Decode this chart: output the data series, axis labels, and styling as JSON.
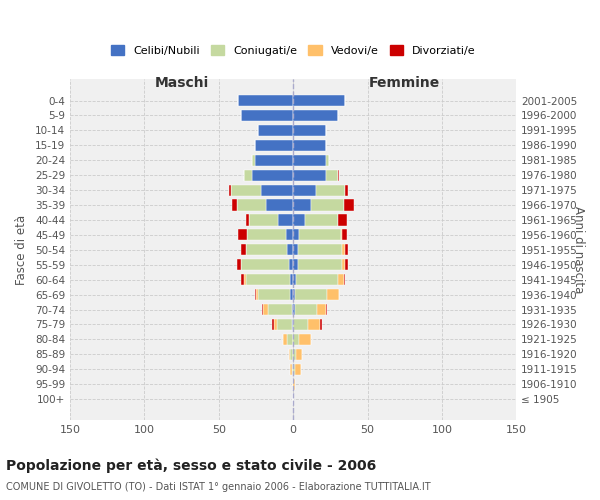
{
  "age_groups": [
    "100+",
    "95-99",
    "90-94",
    "85-89",
    "80-84",
    "75-79",
    "70-74",
    "65-69",
    "60-64",
    "55-59",
    "50-54",
    "45-49",
    "40-44",
    "35-39",
    "30-34",
    "25-29",
    "20-24",
    "15-19",
    "10-14",
    "5-9",
    "0-4"
  ],
  "birth_years": [
    "≤ 1905",
    "1906-1910",
    "1911-1915",
    "1916-1920",
    "1921-1925",
    "1926-1930",
    "1931-1935",
    "1936-1940",
    "1941-1945",
    "1946-1950",
    "1951-1955",
    "1956-1960",
    "1961-1965",
    "1966-1970",
    "1971-1975",
    "1976-1980",
    "1981-1985",
    "1986-1990",
    "1991-1995",
    "1996-2000",
    "2001-2005"
  ],
  "male": {
    "celibi": [
      0,
      0,
      0,
      0,
      0,
      1,
      1,
      2,
      2,
      3,
      4,
      5,
      10,
      18,
      22,
      28,
      26,
      26,
      24,
      35,
      37
    ],
    "coniugati": [
      0,
      0,
      1,
      2,
      4,
      10,
      16,
      22,
      30,
      32,
      28,
      26,
      20,
      20,
      20,
      5,
      2,
      0,
      0,
      0,
      0
    ],
    "vedovi": [
      0,
      0,
      1,
      1,
      3,
      2,
      3,
      1,
      1,
      0,
      0,
      0,
      0,
      0,
      0,
      0,
      0,
      0,
      0,
      0,
      0
    ],
    "divorziati": [
      0,
      0,
      0,
      0,
      0,
      1,
      1,
      1,
      2,
      3,
      3,
      6,
      2,
      3,
      1,
      0,
      0,
      0,
      0,
      0,
      0
    ]
  },
  "female": {
    "nubili": [
      0,
      0,
      0,
      0,
      0,
      0,
      1,
      1,
      2,
      3,
      3,
      4,
      8,
      12,
      15,
      22,
      22,
      22,
      22,
      30,
      35
    ],
    "coniugate": [
      0,
      0,
      1,
      2,
      4,
      10,
      15,
      22,
      28,
      30,
      30,
      28,
      22,
      22,
      20,
      8,
      2,
      0,
      0,
      0,
      0
    ],
    "vedove": [
      0,
      1,
      4,
      4,
      8,
      8,
      6,
      8,
      4,
      2,
      2,
      1,
      0,
      0,
      0,
      0,
      0,
      0,
      0,
      0,
      0
    ],
    "divorziate": [
      0,
      0,
      0,
      0,
      0,
      1,
      1,
      0,
      1,
      2,
      2,
      3,
      6,
      7,
      2,
      1,
      0,
      0,
      0,
      0,
      0
    ]
  },
  "colors": {
    "celibi": "#4472C4",
    "coniugati": "#c5d9a0",
    "vedovi": "#ffc06a",
    "divorziati": "#cc0000"
  },
  "title": "Popolazione per età, sesso e stato civile - 2006",
  "subtitle": "COMUNE DI GIVOLETTO (TO) - Dati ISTAT 1° gennaio 2006 - Elaborazione TUTTITALIA.IT",
  "xlabel_left": "Maschi",
  "xlabel_right": "Femmine",
  "ylabel_left": "Fasce di età",
  "ylabel_right": "Anni di nascita",
  "xlim": 150,
  "bg_color": "#ffffff",
  "grid_color": "#cccccc",
  "legend_labels": [
    "Celibi/Nubili",
    "Coniugati/e",
    "Vedovi/e",
    "Divorziati/e"
  ]
}
